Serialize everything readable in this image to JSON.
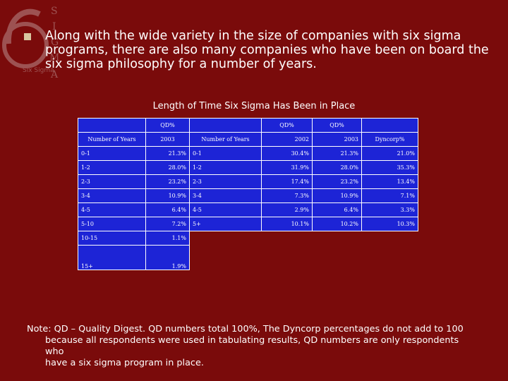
{
  "bullet": {
    "text": "Along with the wide variety in the size of companies with six sigma programs, there are also many companies who have been on board the six sigma philosophy for a number of years."
  },
  "logo": {
    "label": "Six Sigma",
    "letters": [
      "S",
      "I",
      "G",
      "M",
      "A"
    ]
  },
  "table": {
    "title": "Length of Time Six Sigma Has Been in Place",
    "group_header_1": "QD%",
    "group_header_2": "QD%",
    "group_header_3": "QD%",
    "col_years_left": "Number of Years",
    "col_2003_left": "2003",
    "col_years_right": "Number of Years",
    "col_2002": "2002",
    "col_2003_right": "2003",
    "col_dyncorp": "Dyncorp%",
    "rows": [
      {
        "yrs": "0-1",
        "qd2003": "21.3%",
        "yrs2": "0-1",
        "qd2002": "30.4%",
        "qd2003b": "21.3%",
        "dyn": "21.0%"
      },
      {
        "yrs": "1-2",
        "qd2003": "28.0%",
        "yrs2": "1-2",
        "qd2002": "31.9%",
        "qd2003b": "28.0%",
        "dyn": "35.3%"
      },
      {
        "yrs": "2-3",
        "qd2003": "23.2%",
        "yrs2": "2-3",
        "qd2002": "17.4%",
        "qd2003b": "23.2%",
        "dyn": "13.4%"
      },
      {
        "yrs": "3-4",
        "qd2003": "10.9%",
        "yrs2": "3-4",
        "qd2002": "7.3%",
        "qd2003b": "10.9%",
        "dyn": "7.1%"
      },
      {
        "yrs": "4-5",
        "qd2003": "6.4%",
        "yrs2": "4-5",
        "qd2002": "2.9%",
        "qd2003b": "6.4%",
        "dyn": "3.3%"
      },
      {
        "yrs": "5-10",
        "qd2003": "7.2%",
        "yrs2": "5+",
        "qd2002": "10.1%",
        "qd2003b": "10.2%",
        "dyn": "10.3%"
      },
      {
        "yrs": "10-15",
        "qd2003": "1.1%"
      },
      {
        "yrs": "15+",
        "qd2003": "1.9%"
      }
    ]
  },
  "note": {
    "line1": "Note: QD – Quality Digest. QD numbers total 100%, The Dyncorp percentages do not add to 100",
    "line2": "because all respondents were used in tabulating results, QD numbers are only respondents who",
    "line3": "have a six sigma program in place."
  }
}
